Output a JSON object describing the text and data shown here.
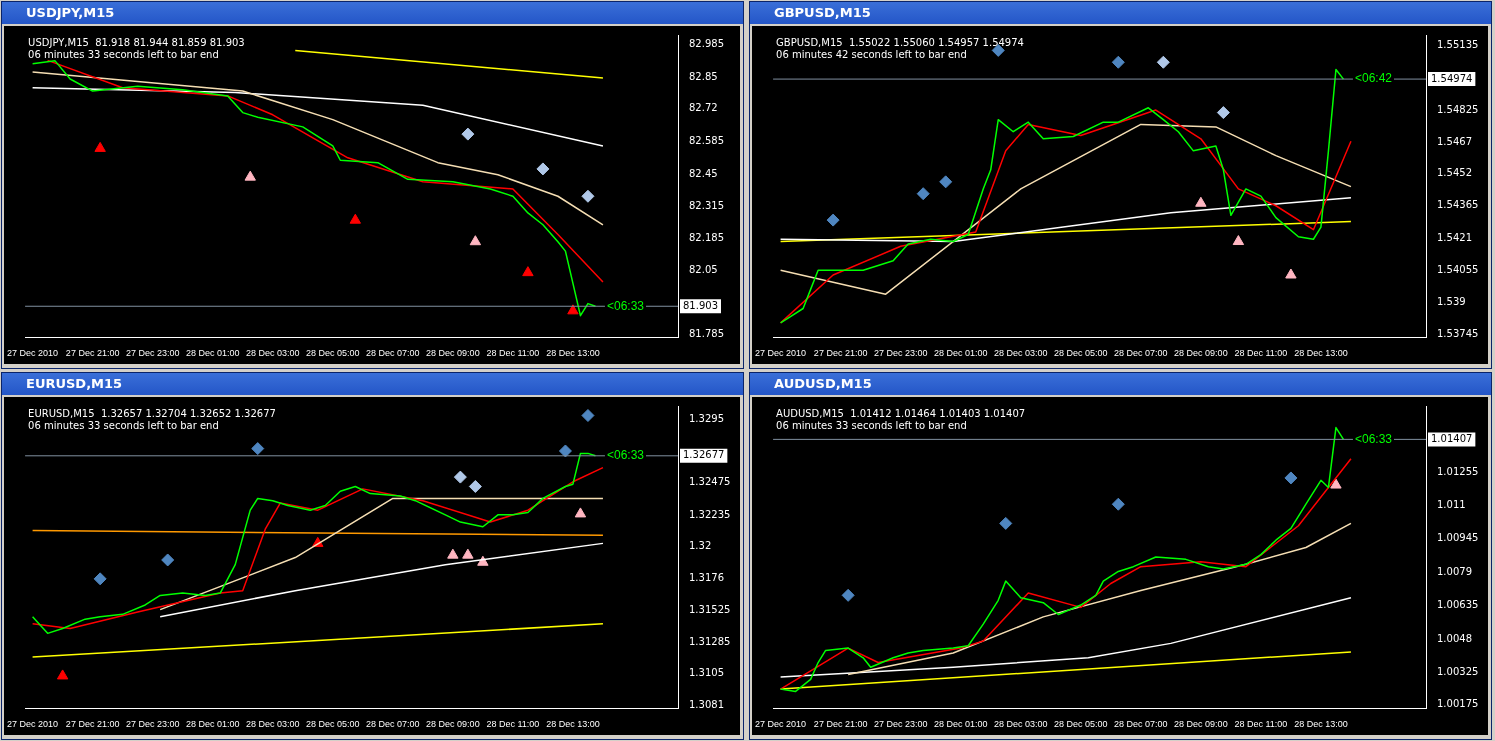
{
  "chart_data": [
    {
      "type": "line",
      "title": "USDJPY,M15",
      "subtitle": "USDJPY,M15  81.918 81.944 81.859 81.903",
      "marker": "none",
      "xlim": [
        "2010-12-27T18:45",
        "2010-12-28T16:30"
      ],
      "ylim": [
        81.775,
        83.025
      ],
      "xticks": [
        {
          "value": "2010-12-27T19:00",
          "label": "27 Dec 2010"
        },
        {
          "value": "2010-12-27T21:00",
          "label": "27 Dec 21:00"
        },
        {
          "value": "2010-12-27T23:00",
          "label": "27 Dec 23:00"
        },
        {
          "value": "2010-12-28T01:00",
          "label": "28 Dec 01:00"
        },
        {
          "value": "2010-12-28T03:00",
          "label": "28 Dec 03:00"
        },
        {
          "value": "2010-12-28T05:00",
          "label": "28 Dec 05:00"
        },
        {
          "value": "2010-12-28T07:00",
          "label": "28 Dec 07:00"
        },
        {
          "value": "2010-12-28T09:00",
          "label": "28 Dec 09:00"
        },
        {
          "value": "2010-12-28T11:00",
          "label": "28 Dec 11:00"
        },
        {
          "value": "2010-12-28T13:00",
          "label": "28 Dec 13:00"
        }
      ],
      "yticks": [
        82.985,
        82.85,
        82.72,
        82.585,
        82.45,
        82.315,
        82.185,
        82.05,
        81.785
      ],
      "ref_lines": [
        {
          "axis": "y",
          "value": 81.903,
          "label": "81.903"
        }
      ],
      "series": [
        {
          "type": "line",
          "color": "#00ff00",
          "x": [
            "2010-12-27T19:00",
            "2010-12-27T19:45",
            "2010-12-27T20:15",
            "2010-12-27T21:00",
            "2010-12-27T22:30",
            "2010-12-28T00:00",
            "2010-12-28T01:30",
            "2010-12-28T02:00",
            "2010-12-28T02:30",
            "2010-12-28T04:00",
            "2010-12-28T05:00",
            "2010-12-28T05:15",
            "2010-12-28T06:30",
            "2010-12-28T07:30",
            "2010-12-28T09:00",
            "2010-12-28T10:15",
            "2010-12-28T11:00",
            "2010-12-28T11:30",
            "2010-12-28T12:00",
            "2010-12-28T12:30",
            "2010-12-28T12:45",
            "2010-12-28T13:15",
            "2010-12-28T13:30",
            "2010-12-28T13:45"
          ],
          "values": [
            82.906,
            82.918,
            82.843,
            82.793,
            82.813,
            82.799,
            82.773,
            82.704,
            82.685,
            82.645,
            82.566,
            82.507,
            82.497,
            82.428,
            82.418,
            82.388,
            82.358,
            82.289,
            82.24,
            82.17,
            82.131,
            81.864,
            81.914,
            81.903
          ]
        },
        {
          "type": "line",
          "color": "#ff0000",
          "x": [
            "2010-12-27T19:30",
            "2010-12-27T22:00",
            "2010-12-28T01:30",
            "2010-12-28T03:00",
            "2010-12-28T05:30",
            "2010-12-28T08:00",
            "2010-12-28T11:00",
            "2010-12-28T12:30",
            "2010-12-28T14:00"
          ],
          "values": [
            82.92,
            82.807,
            82.773,
            82.695,
            82.517,
            82.418,
            82.388,
            82.2,
            82.003
          ]
        },
        {
          "type": "line",
          "color": "#f5deb3",
          "x": [
            "2010-12-27T19:00",
            "2010-12-28T02:00",
            "2010-12-28T05:00",
            "2010-12-28T08:30",
            "2010-12-28T10:30",
            "2010-12-28T12:30",
            "2010-12-28T14:00"
          ],
          "values": [
            82.872,
            82.793,
            82.675,
            82.497,
            82.447,
            82.358,
            82.24
          ]
        },
        {
          "type": "line",
          "color": "#ffffff",
          "x": [
            "2010-12-27T19:00",
            "2010-12-28T01:45",
            "2010-12-28T08:00",
            "2010-12-28T14:00"
          ],
          "values": [
            82.807,
            82.787,
            82.734,
            82.566
          ]
        },
        {
          "type": "line",
          "color": "#ffff00",
          "x": [
            "2010-12-28T03:45",
            "2010-12-28T14:00"
          ],
          "values": [
            82.961,
            82.847
          ]
        },
        {
          "type": "scatter",
          "marker": "triangle",
          "color": "#ff0000",
          "x": [
            "2010-12-27T21:15",
            "2010-12-28T05:45",
            "2010-12-28T11:30",
            "2010-12-28T13:00"
          ],
          "values": [
            82.556,
            82.259,
            82.042,
            81.884
          ]
        },
        {
          "type": "scatter",
          "marker": "triangle",
          "color": "#ffb6c1",
          "x": [
            "2010-12-28T02:15",
            "2010-12-28T09:45"
          ],
          "values": [
            82.437,
            82.17
          ]
        },
        {
          "type": "scatter",
          "marker": "diamond",
          "color": "#b0c8e8",
          "x": [
            "2010-12-28T09:30",
            "2010-12-28T12:00",
            "2010-12-28T13:30"
          ],
          "values": [
            82.615,
            82.471,
            82.358
          ]
        }
      ],
      "annotations": [
        "06 minutes 33 seconds left to bar end",
        {
          "text": "<06:33",
          "x": "2010-12-28T14:45",
          "y": 81.903
        }
      ]
    },
    {
      "type": "line",
      "title": "GBPUSD,M15",
      "subtitle": "GBPUSD,M15  1.55022 1.55060 1.54957 1.54974",
      "marker": "none",
      "xlim": [
        "2010-12-27T18:45",
        "2010-12-28T16:30"
      ],
      "ylim": [
        1.53733,
        1.55186
      ],
      "xticks": [
        {
          "value": "2010-12-27T19:00",
          "label": "27 Dec 2010"
        },
        {
          "value": "2010-12-27T21:00",
          "label": "27 Dec 21:00"
        },
        {
          "value": "2010-12-27T23:00",
          "label": "27 Dec 23:00"
        },
        {
          "value": "2010-12-28T01:00",
          "label": "28 Dec 01:00"
        },
        {
          "value": "2010-12-28T03:00",
          "label": "28 Dec 03:00"
        },
        {
          "value": "2010-12-28T05:00",
          "label": "28 Dec 05:00"
        },
        {
          "value": "2010-12-28T07:00",
          "label": "28 Dec 07:00"
        },
        {
          "value": "2010-12-28T09:00",
          "label": "28 Dec 09:00"
        },
        {
          "value": "2010-12-28T11:00",
          "label": "28 Dec 11:00"
        },
        {
          "value": "2010-12-28T13:00",
          "label": "28 Dec 13:00"
        }
      ],
      "yticks": [
        1.55135,
        1.54825,
        1.5467,
        1.5452,
        1.54365,
        1.5421,
        1.54055,
        1.539,
        1.53745
      ],
      "ref_lines": [
        {
          "axis": "y",
          "value": 1.54974,
          "label": "1.54974"
        }
      ],
      "series": [
        {
          "type": "line",
          "color": "#00ff00",
          "x": [
            "2010-12-27T19:00",
            "2010-12-27T19:15",
            "2010-12-27T19:45",
            "2010-12-27T20:00",
            "2010-12-27T20:15",
            "2010-12-27T20:45",
            "2010-12-27T21:45",
            "2010-12-27T22:45",
            "2010-12-27T23:15",
            "2010-12-28T00:00",
            "2010-12-28T00:45",
            "2010-12-28T01:15",
            "2010-12-28T01:45",
            "2010-12-28T02:00",
            "2010-12-28T02:15",
            "2010-12-28T02:45",
            "2010-12-28T03:15",
            "2010-12-28T03:45",
            "2010-12-28T04:45",
            "2010-12-28T05:45",
            "2010-12-28T06:15",
            "2010-12-28T07:15",
            "2010-12-28T07:45",
            "2010-12-28T08:15",
            "2010-12-28T08:45",
            "2010-12-28T09:30",
            "2010-12-28T09:45",
            "2010-12-28T10:00",
            "2010-12-28T10:30",
            "2010-12-28T11:00",
            "2010-12-28T11:30",
            "2010-12-28T12:15",
            "2010-12-28T12:45",
            "2010-12-28T13:00",
            "2010-12-28T13:15",
            "2010-12-28T13:30",
            "2010-12-28T13:45"
          ],
          "values": [
            1.53802,
            1.53825,
            1.53871,
            1.53963,
            1.54055,
            1.54055,
            1.54055,
            1.54101,
            1.54181,
            1.54204,
            1.54193,
            1.54227,
            1.54446,
            1.54538,
            1.54779,
            1.54721,
            1.54767,
            1.54687,
            1.54698,
            1.54767,
            1.54767,
            1.54836,
            1.54779,
            1.54721,
            1.54629,
            1.54652,
            1.54538,
            1.54319,
            1.54446,
            1.54411,
            1.54308,
            1.54216,
            1.54204,
            1.54262,
            1.54629,
            1.5502,
            1.54974
          ]
        },
        {
          "type": "line",
          "color": "#ff0000",
          "x": [
            "2010-12-27T19:00",
            "2010-12-27T20:45",
            "2010-12-27T23:00",
            "2010-12-28T01:30",
            "2010-12-28T02:30",
            "2010-12-28T03:15",
            "2010-12-28T05:00",
            "2010-12-28T07:30",
            "2010-12-28T09:00",
            "2010-12-28T10:15",
            "2010-12-28T11:30",
            "2010-12-28T12:45",
            "2010-12-28T14:00"
          ],
          "values": [
            1.53802,
            1.54032,
            1.5417,
            1.54239,
            1.54629,
            1.54756,
            1.54703,
            1.54825,
            1.54687,
            1.54446,
            1.54365,
            1.5425,
            1.54675
          ]
        },
        {
          "type": "line",
          "color": "#f5deb3",
          "x": [
            "2010-12-27T19:00",
            "2010-12-27T22:30",
            "2010-12-28T03:00",
            "2010-12-28T07:00",
            "2010-12-28T09:30",
            "2010-12-28T11:30",
            "2010-12-28T14:00"
          ],
          "values": [
            1.54055,
            1.5394,
            1.54446,
            1.54756,
            1.54744,
            1.54606,
            1.54457
          ]
        },
        {
          "type": "line",
          "color": "#ffffff",
          "x": [
            "2010-12-27T19:00",
            "2010-12-28T00:45",
            "2010-12-28T08:00",
            "2010-12-28T14:00"
          ],
          "values": [
            1.54204,
            1.54193,
            1.54331,
            1.54404
          ]
        },
        {
          "type": "line",
          "color": "#ffff00",
          "x": [
            "2010-12-27T19:00",
            "2010-12-28T14:00"
          ],
          "values": [
            1.54193,
            1.54289
          ]
        },
        {
          "type": "scatter",
          "marker": "diamond",
          "color": "#4f86c0",
          "x": [
            "2010-12-28T02:15",
            "2010-12-28T06:15",
            "2010-12-27T23:45",
            "2010-12-28T00:30",
            "2010-12-27T20:45"
          ],
          "values": [
            1.55112,
            1.55055,
            1.54423,
            1.5448,
            1.54296
          ]
        },
        {
          "type": "scatter",
          "marker": "diamond",
          "color": "#b0c8e8",
          "x": [
            "2010-12-28T07:45",
            "2010-12-28T09:45"
          ],
          "values": [
            1.55055,
            1.54813
          ]
        },
        {
          "type": "scatter",
          "marker": "triangle",
          "color": "#ffb6c1",
          "x": [
            "2010-12-28T09:00",
            "2010-12-28T10:15",
            "2010-12-28T12:00"
          ],
          "values": [
            1.54377,
            1.54193,
            1.54032
          ]
        }
      ],
      "annotations": [
        "06 minutes 42 seconds left to bar end",
        {
          "text": "<06:42",
          "x": "2010-12-28T14:45",
          "y": 1.54974
        }
      ]
    },
    {
      "type": "line",
      "title": "EURUSD,M15",
      "subtitle": "EURUSD,M15  1.32657 1.32704 1.32652 1.32677",
      "marker": "none",
      "xlim": [
        "2010-12-27T18:45",
        "2010-12-28T16:30"
      ],
      "ylim": [
        1.30792,
        1.33049
      ],
      "xticks": [
        {
          "value": "2010-12-27T19:00",
          "label": "27 Dec 2010"
        },
        {
          "value": "2010-12-27T21:00",
          "label": "27 Dec 21:00"
        },
        {
          "value": "2010-12-27T23:00",
          "label": "27 Dec 23:00"
        },
        {
          "value": "2010-12-28T01:00",
          "label": "28 Dec 01:00"
        },
        {
          "value": "2010-12-28T03:00",
          "label": "28 Dec 03:00"
        },
        {
          "value": "2010-12-28T05:00",
          "label": "28 Dec 05:00"
        },
        {
          "value": "2010-12-28T07:00",
          "label": "28 Dec 07:00"
        },
        {
          "value": "2010-12-28T09:00",
          "label": "28 Dec 09:00"
        },
        {
          "value": "2010-12-28T11:00",
          "label": "28 Dec 11:00"
        },
        {
          "value": "2010-12-28T13:00",
          "label": "28 Dec 13:00"
        }
      ],
      "yticks": [
        1.3295,
        1.32475,
        1.32235,
        1.32,
        1.3176,
        1.31525,
        1.31285,
        1.3105,
        1.3081
      ],
      "ref_lines": [
        {
          "axis": "y",
          "value": 1.32677,
          "label": "1.32677"
        }
      ],
      "series": [
        {
          "type": "line",
          "color": "#00ff00",
          "x": [
            "2010-12-27T19:00",
            "2010-12-27T19:30",
            "2010-12-27T20:00",
            "2010-12-27T20:45",
            "2010-12-27T21:15",
            "2010-12-27T22:00",
            "2010-12-27T22:45",
            "2010-12-27T23:15",
            "2010-12-28T00:00",
            "2010-12-28T00:45",
            "2010-12-28T01:15",
            "2010-12-28T01:45",
            "2010-12-28T02:15",
            "2010-12-28T02:30",
            "2010-12-28T03:00",
            "2010-12-28T03:30",
            "2010-12-28T04:15",
            "2010-12-28T04:45",
            "2010-12-28T05:15",
            "2010-12-28T05:45",
            "2010-12-28T06:15",
            "2010-12-28T07:15",
            "2010-12-28T07:45",
            "2010-12-28T08:45",
            "2010-12-28T09:15",
            "2010-12-28T10:00",
            "2010-12-28T10:30",
            "2010-12-28T11:00",
            "2010-12-28T11:30",
            "2010-12-28T12:00",
            "2010-12-28T12:45",
            "2010-12-28T13:00",
            "2010-12-28T13:15",
            "2010-12-28T13:30",
            "2010-12-28T13:45"
          ],
          "values": [
            1.31475,
            1.31351,
            1.31387,
            1.31457,
            1.31475,
            1.31493,
            1.31563,
            1.31634,
            1.31652,
            1.31634,
            1.31652,
            1.31864,
            1.32271,
            1.32359,
            1.32342,
            1.32306,
            1.32271,
            1.32306,
            1.32412,
            1.32448,
            1.32395,
            1.32377,
            1.32342,
            1.32236,
            1.32182,
            1.32147,
            1.32236,
            1.32236,
            1.32253,
            1.32359,
            1.32448,
            1.32465,
            1.32695,
            1.32695,
            1.32677
          ]
        },
        {
          "type": "line",
          "color": "#ff0000",
          "x": [
            "2010-12-27T19:00",
            "2010-12-27T20:15",
            "2010-12-27T22:30",
            "2010-12-28T01:15",
            "2010-12-28T02:00",
            "2010-12-28T02:45",
            "2010-12-28T03:15",
            "2010-12-28T04:30",
            "2010-12-28T06:00",
            "2010-12-28T08:00",
            "2010-12-28T10:15",
            "2010-12-28T11:30",
            "2010-12-28T13:00",
            "2010-12-28T14:00"
          ],
          "values": [
            1.31422,
            1.31387,
            1.3151,
            1.31652,
            1.3167,
            1.32129,
            1.32324,
            1.32271,
            1.3243,
            1.32342,
            1.32182,
            1.32271,
            1.32483,
            1.32589
          ]
        },
        {
          "type": "line",
          "color": "#f5deb3",
          "x": [
            "2010-12-27T23:15",
            "2010-12-28T03:45",
            "2010-12-28T07:00",
            "2010-12-28T09:30",
            "2010-12-28T14:00"
          ],
          "values": [
            1.31528,
            1.31917,
            1.32359,
            1.32359,
            1.32359
          ]
        },
        {
          "type": "line",
          "color": "#ffffff",
          "x": [
            "2010-12-27T23:15",
            "2010-12-28T03:45",
            "2010-12-28T08:45",
            "2010-12-28T14:00"
          ],
          "values": [
            1.31475,
            1.3167,
            1.31864,
            1.32023
          ]
        },
        {
          "type": "line",
          "color": "#ff9900",
          "x": [
            "2010-12-27T19:00",
            "2010-12-28T14:00"
          ],
          "values": [
            1.32119,
            1.32083
          ]
        },
        {
          "type": "line",
          "color": "#ffff00",
          "x": [
            "2010-12-27T19:00",
            "2010-12-28T14:00"
          ],
          "values": [
            1.31174,
            1.31422
          ]
        },
        {
          "type": "scatter",
          "marker": "triangle",
          "color": "#ff0000",
          "x": [
            "2010-12-27T20:00",
            "2010-12-28T04:30"
          ],
          "values": [
            1.31033,
            1.32023
          ]
        },
        {
          "type": "scatter",
          "marker": "diamond",
          "color": "#4f86c0",
          "x": [
            "2010-12-27T21:15",
            "2010-12-27T23:30",
            "2010-12-28T02:30",
            "2010-12-28T12:45",
            "2010-12-28T13:30"
          ],
          "values": [
            1.31758,
            1.31899,
            1.32731,
            1.32713,
            1.32978
          ]
        },
        {
          "type": "scatter",
          "marker": "diamond",
          "color": "#b0c8e8",
          "x": [
            "2010-12-28T09:15",
            "2010-12-28T09:45"
          ],
          "values": [
            1.32518,
            1.32448
          ]
        },
        {
          "type": "scatter",
          "marker": "triangle",
          "color": "#ffb6c1",
          "x": [
            "2010-12-28T09:00",
            "2010-12-28T09:30",
            "2010-12-28T10:00",
            "2010-12-28T13:15"
          ],
          "values": [
            1.31935,
            1.31935,
            1.31882,
            1.32243
          ]
        }
      ],
      "annotations": [
        "06 minutes 33 seconds left to bar end",
        {
          "text": "<06:33",
          "x": "2010-12-28T14:45",
          "y": 1.32677
        }
      ]
    },
    {
      "type": "line",
      "title": "AUDUSD,M15",
      "subtitle": "AUDUSD,M15  1.01412 1.01464 1.01403 1.01407",
      "marker": "none",
      "xlim": [
        "2010-12-27T18:45",
        "2010-12-28T16:30"
      ],
      "ylim": [
        1.00159,
        1.01562
      ],
      "xticks": [
        {
          "value": "2010-12-27T19:00",
          "label": "27 Dec 2010"
        },
        {
          "value": "2010-12-27T21:00",
          "label": "27 Dec 21:00"
        },
        {
          "value": "2010-12-27T23:00",
          "label": "27 Dec 23:00"
        },
        {
          "value": "2010-12-28T01:00",
          "label": "28 Dec 01:00"
        },
        {
          "value": "2010-12-28T03:00",
          "label": "28 Dec 03:00"
        },
        {
          "value": "2010-12-28T05:00",
          "label": "28 Dec 05:00"
        },
        {
          "value": "2010-12-28T07:00",
          "label": "28 Dec 07:00"
        },
        {
          "value": "2010-12-28T09:00",
          "label": "28 Dec 09:00"
        },
        {
          "value": "2010-12-28T11:00",
          "label": "28 Dec 11:00"
        },
        {
          "value": "2010-12-28T13:00",
          "label": "28 Dec 13:00"
        }
      ],
      "yticks": [
        1.01255,
        1.011,
        1.00945,
        1.0079,
        1.00635,
        1.0048,
        1.00325,
        1.00175
      ],
      "ref_lines": [
        {
          "axis": "y",
          "value": 1.01407,
          "label": "1.01407"
        }
      ],
      "series": [
        {
          "type": "line",
          "color": "#00ff00",
          "x": [
            "2010-12-27T19:00",
            "2010-12-27T19:30",
            "2010-12-27T20:00",
            "2010-12-27T20:15",
            "2010-12-27T20:30",
            "2010-12-27T21:15",
            "2010-12-27T21:45",
            "2010-12-27T22:00",
            "2010-12-27T22:45",
            "2010-12-27T23:15",
            "2010-12-27T23:45",
            "2010-12-28T00:45",
            "2010-12-28T01:15",
            "2010-12-28T01:45",
            "2010-12-28T02:15",
            "2010-12-28T02:30",
            "2010-12-28T03:00",
            "2010-12-28T03:45",
            "2010-12-28T04:15",
            "2010-12-28T05:00",
            "2010-12-28T05:30",
            "2010-12-28T05:45",
            "2010-12-28T06:15",
            "2010-12-28T06:45",
            "2010-12-28T07:30",
            "2010-12-28T08:30",
            "2010-12-28T09:15",
            "2010-12-28T09:45",
            "2010-12-28T10:30",
            "2010-12-28T11:00",
            "2010-12-28T11:30",
            "2010-12-28T12:00",
            "2010-12-28T12:30",
            "2010-12-28T13:00",
            "2010-12-28T13:15",
            "2010-12-28T13:30",
            "2010-12-28T13:45"
          ],
          "values": [
            1.00248,
            1.00237,
            1.00293,
            1.00371,
            1.00427,
            1.00438,
            1.00393,
            1.00349,
            1.00393,
            1.00415,
            1.00427,
            1.00438,
            1.00449,
            1.00549,
            1.0066,
            1.00749,
            1.00672,
            1.00649,
            1.00594,
            1.00638,
            1.00683,
            1.00749,
            1.00794,
            1.00816,
            1.00861,
            1.0085,
            1.00816,
            1.00805,
            1.00827,
            1.00872,
            1.00939,
            1.00994,
            1.01106,
            1.01217,
            1.01184,
            1.01462,
            1.01407
          ]
        },
        {
          "type": "line",
          "color": "#ff0000",
          "x": [
            "2010-12-27T19:00",
            "2010-12-27T21:15",
            "2010-12-27T22:15",
            "2010-12-28T01:00",
            "2010-12-28T01:45",
            "2010-12-28T03:15",
            "2010-12-28T05:00",
            "2010-12-28T06:00",
            "2010-12-28T07:00",
            "2010-12-28T09:00",
            "2010-12-28T10:30",
            "2010-12-28T12:15",
            "2010-12-28T14:00"
          ],
          "values": [
            1.00248,
            1.00438,
            1.00371,
            1.00438,
            1.00471,
            1.00694,
            1.00627,
            1.00738,
            1.00816,
            1.00839,
            1.00816,
            1.01006,
            1.01317
          ]
        },
        {
          "type": "line",
          "color": "#f5deb3",
          "x": [
            "2010-12-27T21:15",
            "2010-12-28T00:45",
            "2010-12-28T03:45",
            "2010-12-28T07:00",
            "2010-12-28T10:30",
            "2010-12-28T12:30",
            "2010-12-28T14:00"
          ],
          "values": [
            1.00315,
            1.00415,
            1.00583,
            1.00705,
            1.00827,
            1.00905,
            1.01017
          ]
        },
        {
          "type": "line",
          "color": "#ffffff",
          "x": [
            "2010-12-27T19:00",
            "2010-12-28T00:45",
            "2010-12-28T05:15",
            "2010-12-28T08:00",
            "2010-12-28T14:00"
          ],
          "values": [
            1.00304,
            1.00349,
            1.00393,
            1.0046,
            1.00672
          ]
        },
        {
          "type": "line",
          "color": "#ffff00",
          "x": [
            "2010-12-27T19:00",
            "2010-12-28T14:00"
          ],
          "values": [
            1.00248,
            1.0042
          ]
        },
        {
          "type": "scatter",
          "marker": "diamond",
          "color": "#4f86c0",
          "x": [
            "2010-12-27T21:15",
            "2010-12-28T02:30",
            "2010-12-28T06:15",
            "2010-12-28T12:00"
          ],
          "values": [
            1.00683,
            1.01017,
            1.01106,
            1.01228
          ]
        },
        {
          "type": "scatter",
          "marker": "triangle",
          "color": "#ffb6c1",
          "x": [
            "2010-12-28T13:30"
          ],
          "values": [
            1.01195
          ]
        }
      ],
      "annotations": [
        "06 minutes 33 seconds left to bar end",
        {
          "text": "<06:33",
          "x": "2010-12-28T14:45",
          "y": 1.01407
        }
      ]
    }
  ]
}
